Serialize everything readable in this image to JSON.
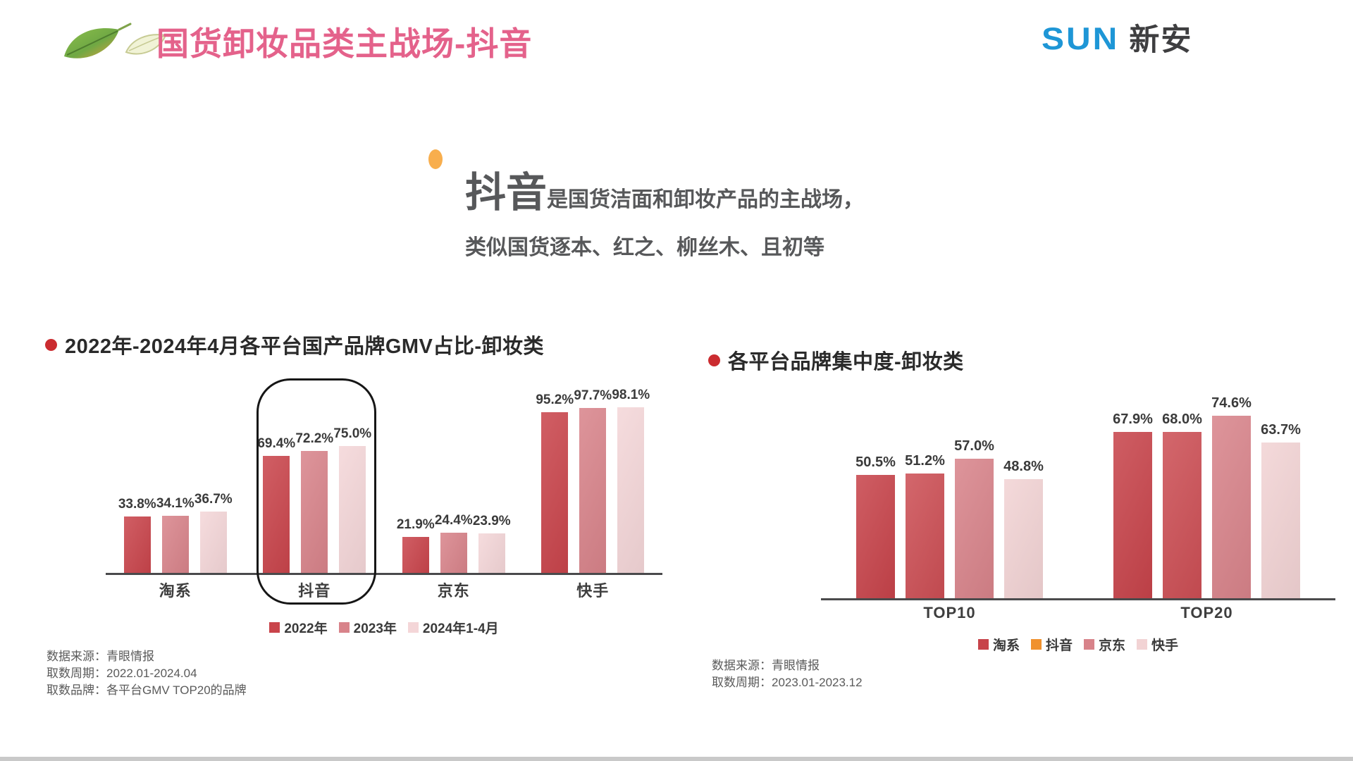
{
  "header": {
    "title": "国货卸妆品类主战场-抖音",
    "logo_sun": "SUN",
    "logo_name": "新安"
  },
  "callout": {
    "keyword": "抖音",
    "line1_rest": "是国货洁面和卸妆产品的主战场，",
    "line2": "类似国货逐本、红之、柳丝木、且初等"
  },
  "colors": {
    "title_pink": "#E4628B",
    "logo_blue": "#1E96D6",
    "callout_dot_orange": "#F8AE4D",
    "bullet_red": "#CB2C30",
    "series_red_2022": "#C9444B",
    "series_rose_2023": "#D8838A",
    "series_light_2024": "#F4D6D8",
    "legend_douyin_orange": "#F0912D",
    "text_gray": "#5A5A5A"
  },
  "chart_data": [
    {
      "id": "gmv-share",
      "type": "bar",
      "title": "2022年-2024年4月各平台国产品牌GMV占比-卸妆类",
      "categories": [
        "淘系",
        "抖音",
        "京东",
        "快手"
      ],
      "series": [
        {
          "name": "2022年",
          "color": "#C9444B",
          "values": [
            33.8,
            69.4,
            21.9,
            95.2
          ]
        },
        {
          "name": "2023年",
          "color": "#D8838A",
          "values": [
            34.1,
            72.2,
            24.4,
            97.7
          ]
        },
        {
          "name": "2024年1-4月",
          "color": "#F4D6D8",
          "values": [
            36.7,
            75.0,
            23.9,
            98.1
          ]
        }
      ],
      "value_suffix": "%",
      "ylim": [
        0,
        100
      ],
      "grid": false,
      "legend_position": "bottom",
      "highlight_category": "抖音",
      "source_lines": [
        "数据来源：青眼情报",
        "取数周期：2022.01-2024.04",
        "取数品牌：各平台GMV TOP20的品牌"
      ]
    },
    {
      "id": "brand-concentration",
      "type": "bar",
      "title": "各平台品牌集中度-卸妆类",
      "categories": [
        "TOP10",
        "TOP20"
      ],
      "series": [
        {
          "name": "淘系",
          "color": "#C7434A",
          "legend_color": "#C7434A",
          "values": [
            50.5,
            67.9
          ]
        },
        {
          "name": "抖音",
          "color": "#CC4E54",
          "legend_color": "#F0912D",
          "values": [
            51.2,
            68.0
          ]
        },
        {
          "name": "京东",
          "color": "#D8838A",
          "legend_color": "#D8838A",
          "values": [
            57.0,
            74.6
          ]
        },
        {
          "name": "快手",
          "color": "#F2D3D4",
          "legend_color": "#F2D3D4",
          "values": [
            48.8,
            63.7
          ]
        }
      ],
      "value_suffix": "%",
      "ylim": [
        0,
        100
      ],
      "grid": false,
      "legend_position": "bottom",
      "source_lines": [
        "数据来源：青眼情报",
        "取数周期：2023.01-2023.12"
      ]
    }
  ]
}
